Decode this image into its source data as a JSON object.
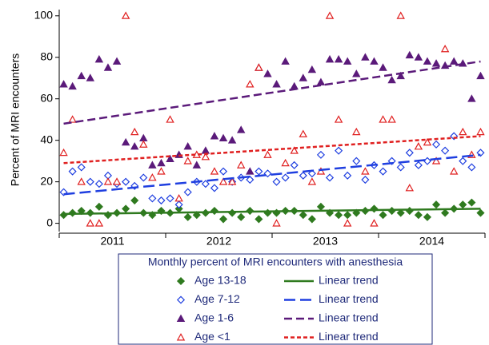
{
  "chart_data": {
    "type": "scatter",
    "y_label": "Percent of MRI encounters",
    "legend_title": "Monthly percent of MRI encounters with anesthesia",
    "x": [
      0,
      1,
      2,
      3,
      4,
      5,
      6,
      7,
      8,
      9,
      10,
      11,
      12,
      13,
      14,
      15,
      16,
      17,
      18,
      19,
      20,
      21,
      22,
      23,
      24,
      25,
      26,
      27,
      28,
      29,
      30,
      31,
      32,
      33,
      34,
      35,
      36,
      37,
      38,
      39,
      40,
      41,
      42,
      43,
      44,
      45,
      46,
      47
    ],
    "xlim": [
      -0.5,
      47.5
    ],
    "xticks": [
      {
        "value": 5.5,
        "label": "2011"
      },
      {
        "value": 17.5,
        "label": "2012"
      },
      {
        "value": 29.5,
        "label": "2013"
      },
      {
        "value": 41.5,
        "label": "2014"
      }
    ],
    "xtick_marks": [
      -0.5,
      11.5,
      23.5,
      35.5,
      47.5
    ],
    "ylim": [
      -4,
      103
    ],
    "yticks": [
      0,
      20,
      40,
      60,
      80,
      100
    ],
    "series": [
      {
        "name": "Age 13-18",
        "kind": "points",
        "marker": "diamond",
        "filled": true,
        "color": "#2f7a1f",
        "values": [
          4,
          5,
          6,
          5,
          8,
          4,
          5,
          7,
          11,
          5,
          4,
          6,
          5,
          7,
          3,
          4,
          5,
          6,
          2,
          5,
          3,
          6,
          2,
          5,
          5,
          6,
          6,
          4,
          2,
          8,
          5,
          4,
          4,
          5,
          6,
          7,
          4,
          6,
          5,
          6,
          4,
          3,
          9,
          5,
          7,
          9,
          10,
          5
        ]
      },
      {
        "name": "Age 7-12",
        "kind": "points",
        "marker": "diamond",
        "filled": false,
        "color": "#1f3fe0",
        "values": [
          15,
          25,
          27,
          20,
          19,
          23,
          19,
          20,
          18,
          22,
          12,
          11,
          12,
          9,
          15,
          20,
          19,
          17,
          25,
          20,
          22,
          21,
          25,
          24,
          20,
          22,
          28,
          23,
          24,
          33,
          22,
          35,
          23,
          30,
          21,
          28,
          25,
          30,
          27,
          34,
          28,
          30,
          38,
          35,
          42,
          30,
          27,
          34
        ]
      },
      {
        "name": "Age 1-6",
        "kind": "points",
        "marker": "triangle",
        "filled": true,
        "color": "#5b1a7a",
        "values": [
          67,
          66,
          71,
          70,
          79,
          75,
          78,
          39,
          37,
          41,
          28,
          29,
          31,
          33,
          37,
          28,
          35,
          42,
          41,
          40,
          45,
          25,
          75,
          72,
          67,
          78,
          66,
          70,
          74,
          68,
          79,
          79,
          78,
          72,
          80,
          78,
          75,
          69,
          71,
          81,
          80,
          78,
          77,
          76,
          78,
          77,
          60,
          71
        ]
      },
      {
        "name": "Age <1",
        "kind": "points",
        "marker": "triangle",
        "filled": false,
        "color": "#e02020",
        "values": [
          34,
          50,
          20,
          0,
          0,
          20,
          20,
          100,
          44,
          38,
          22,
          25,
          50,
          12,
          30,
          33,
          32,
          25,
          20,
          20,
          28,
          67,
          75,
          33,
          0,
          29,
          35,
          43,
          20,
          25,
          100,
          50,
          0,
          44,
          25,
          0,
          50,
          50,
          100,
          17,
          37,
          39,
          30,
          84,
          25,
          44,
          33,
          44
        ]
      },
      {
        "name": "Linear trend",
        "kind": "line",
        "dash": "solid",
        "color": "#2f7a1f",
        "x": [
          0,
          47
        ],
        "values": [
          4.5,
          7
        ]
      },
      {
        "name": "Linear trend",
        "kind": "line",
        "dash": "long",
        "color": "#1f3fe0",
        "x": [
          0,
          47
        ],
        "values": [
          14,
          33
        ]
      },
      {
        "name": "Linear trend",
        "kind": "line",
        "dash": "medium",
        "color": "#5b1a7a",
        "x": [
          0,
          47
        ],
        "values": [
          48,
          78
        ]
      },
      {
        "name": "Linear trend",
        "kind": "line",
        "dash": "short",
        "color": "#e02020",
        "x": [
          0,
          47
        ],
        "values": [
          29,
          42
        ]
      }
    ]
  }
}
